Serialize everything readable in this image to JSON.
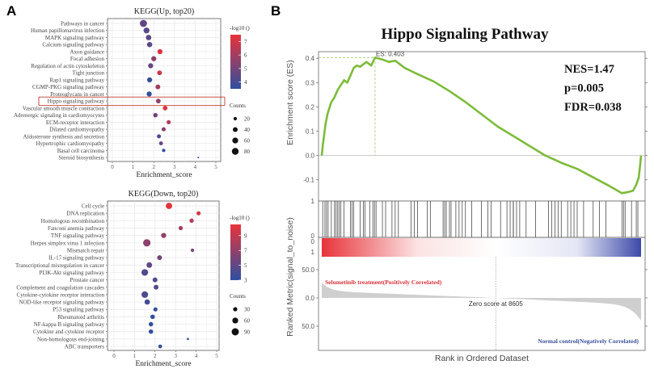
{
  "panel_labels": {
    "a": "A",
    "b": "B"
  },
  "chart_data": [
    {
      "type": "scatter",
      "id": "kegg_up",
      "title": "KEGG(Up, top20)",
      "xlabel": "Enrichment_score",
      "xlim": [
        0,
        5
      ],
      "xticks": [
        "0",
        "1",
        "2",
        "3",
        "4",
        "5"
      ],
      "color_legend": {
        "title": "-log10 ()",
        "range": [
          3.5,
          7.5
        ],
        "ticks": [
          "7",
          "6",
          "5",
          "4"
        ],
        "tick_values": [
          7,
          6,
          5,
          4
        ]
      },
      "size_legend": {
        "title": "Counts",
        "labels": [
          "20",
          "40",
          "60",
          "80"
        ],
        "values": [
          20,
          40,
          60,
          80
        ]
      },
      "highlight": "Hippo signaling pathway",
      "categories": [
        "Pathways in cancer",
        "Human papillomavirus infection",
        "MAPK signaling pathway",
        "Calcium signaling pathway",
        "Axon guidance",
        "Focal adhesion",
        "Regulation of actin cytoskeleton",
        "Tight junction",
        "Rap1 signaling pathway",
        "CGMP-PKG signaling pathway",
        "Proteoglycans in cancer",
        "Hippo signaling pathway",
        "Vascular smooth muscle contraction",
        "Adrenergic signaling in cardiomyocytes",
        "ECM-receptor interaction",
        "Dilated cardiomyopathy",
        "Aldosterone synthesis and secretion",
        "Hypertrophic cardiomyopathy",
        "Basal cell carcinoma",
        "Steroid biosynthesis"
      ],
      "enrichment_score": [
        1.5,
        1.65,
        1.75,
        1.8,
        2.3,
        2.0,
        1.85,
        2.28,
        1.8,
        2.2,
        1.78,
        2.22,
        2.55,
        2.08,
        2.72,
        2.48,
        2.25,
        2.35,
        2.48,
        4.15
      ],
      "neg_log10_p": [
        4.6,
        4.4,
        4.5,
        4.5,
        7.2,
        5.6,
        4.7,
        6.8,
        3.8,
        6.0,
        3.6,
        5.6,
        7.3,
        5.0,
        6.3,
        5.4,
        4.2,
        4.6,
        3.5,
        3.9
      ],
      "counts": [
        88,
        60,
        52,
        48,
        45,
        45,
        45,
        40,
        45,
        40,
        45,
        38,
        38,
        35,
        30,
        30,
        28,
        26,
        20,
        5
      ]
    },
    {
      "type": "scatter",
      "id": "kegg_down",
      "title": "KEGG(Down, top20)",
      "xlabel": "Enrichment_score",
      "xlim": [
        0,
        5
      ],
      "xticks": [
        "0",
        "1",
        "2",
        "3",
        "4",
        "5"
      ],
      "color_legend": {
        "title": "-log10 ()",
        "range": [
          3,
          10.5
        ],
        "ticks": [
          "9",
          "7",
          "5",
          "3"
        ],
        "tick_values": [
          9,
          7,
          5,
          3
        ]
      },
      "size_legend": {
        "title": "Counts",
        "labels": [
          "30",
          "60",
          "90"
        ],
        "values": [
          30,
          60,
          90
        ]
      },
      "categories": [
        "Cell cycle",
        "DNA replication",
        "Homologous recombination",
        "Fanconi anemia pathway",
        "TNF signaling pathway",
        "Herpes simplex virus 1 infection",
        "Mismatch repair",
        "IL-17 signaling pathway",
        "Transcriptional misregulation in cancer",
        "PI3K-Akt signaling pathway",
        "Prostate cancer",
        "Complement and coagulation cascades",
        "Cytokine-cytokine receptor interaction",
        "NOD-like receptor signaling pathway",
        "P53 signaling pathway",
        "Rheumatoid arthritis",
        "NF-kappa B signaling pathway",
        "Cytokine and cytokine receptor",
        "Non-homologous end-joining",
        "ABC transporters"
      ],
      "enrichment_score": [
        2.68,
        4.12,
        3.78,
        3.25,
        2.42,
        1.6,
        3.82,
        2.22,
        1.72,
        1.5,
        2.0,
        2.05,
        1.5,
        1.62,
        2.02,
        1.88,
        1.8,
        1.8,
        3.6,
        2.25
      ],
      "neg_log10_p": [
        10.2,
        9.5,
        8.6,
        8.0,
        7.0,
        6.8,
        6.0,
        6.0,
        5.0,
        4.4,
        4.4,
        4.5,
        4.2,
        4.0,
        3.5,
        3.3,
        3.3,
        3.3,
        3.2,
        3.4
      ],
      "counts": [
        70,
        30,
        32,
        32,
        45,
        95,
        20,
        40,
        55,
        75,
        40,
        40,
        75,
        50,
        30,
        35,
        35,
        35,
        8,
        25
      ]
    },
    {
      "type": "line",
      "id": "gsea",
      "title": "Hippo Signaling Pathway",
      "ylabel": "Enrichment score (ES)",
      "ylim": [
        -0.16,
        0.43
      ],
      "yticks": [
        "0.4",
        "0.3",
        "0.2",
        "0.1",
        "0.0",
        "-0.1"
      ],
      "ytick_values": [
        0.4,
        0.3,
        0.2,
        0.1,
        0.0,
        -0.1
      ],
      "peak_label": "ES: 0.403",
      "peak_es": 0.403,
      "peak_rank_fraction": 0.167,
      "stats": [
        "NES=1.47",
        "p=0.005",
        "FDR=0.038"
      ],
      "es_curve": [
        [
          0,
          0
        ],
        [
          0.004,
          0.05
        ],
        [
          0.008,
          0.09
        ],
        [
          0.012,
          0.13
        ],
        [
          0.018,
          0.17
        ],
        [
          0.025,
          0.2
        ],
        [
          0.03,
          0.22
        ],
        [
          0.04,
          0.24
        ],
        [
          0.05,
          0.27
        ],
        [
          0.06,
          0.29
        ],
        [
          0.07,
          0.31
        ],
        [
          0.08,
          0.3
        ],
        [
          0.09,
          0.33
        ],
        [
          0.1,
          0.36
        ],
        [
          0.11,
          0.37
        ],
        [
          0.12,
          0.365
        ],
        [
          0.14,
          0.385
        ],
        [
          0.155,
          0.37
        ],
        [
          0.167,
          0.403
        ],
        [
          0.19,
          0.395
        ],
        [
          0.21,
          0.385
        ],
        [
          0.23,
          0.39
        ],
        [
          0.26,
          0.36
        ],
        [
          0.3,
          0.335
        ],
        [
          0.35,
          0.305
        ],
        [
          0.4,
          0.265
        ],
        [
          0.45,
          0.22
        ],
        [
          0.5,
          0.17
        ],
        [
          0.55,
          0.12
        ],
        [
          0.6,
          0.08
        ],
        [
          0.65,
          0.04
        ],
        [
          0.7,
          0.0
        ],
        [
          0.75,
          -0.03
        ],
        [
          0.8,
          -0.055
        ],
        [
          0.85,
          -0.09
        ],
        [
          0.9,
          -0.125
        ],
        [
          0.94,
          -0.155
        ],
        [
          0.96,
          -0.15
        ],
        [
          0.975,
          -0.145
        ],
        [
          0.985,
          -0.12
        ],
        [
          0.993,
          -0.09
        ],
        [
          0.997,
          -0.04
        ],
        [
          1.0,
          0.0
        ]
      ],
      "hits": [
        0.003,
        0.01,
        0.015,
        0.02,
        0.03,
        0.04,
        0.045,
        0.05,
        0.055,
        0.06,
        0.07,
        0.09,
        0.095,
        0.1,
        0.12,
        0.13,
        0.135,
        0.15,
        0.16,
        0.165,
        0.17,
        0.19,
        0.2,
        0.22,
        0.23,
        0.24,
        0.28,
        0.29,
        0.3,
        0.33,
        0.34,
        0.38,
        0.385,
        0.39,
        0.4,
        0.405,
        0.42,
        0.43,
        0.44,
        0.45,
        0.47,
        0.5,
        0.52,
        0.53,
        0.56,
        0.58,
        0.59,
        0.6,
        0.6,
        0.61,
        0.62,
        0.64,
        0.67,
        0.71,
        0.72,
        0.73,
        0.74,
        0.75,
        0.77,
        0.78,
        0.79,
        0.8,
        0.82,
        0.85,
        0.87,
        0.89,
        0.94,
        0.945,
        0.95,
        0.97,
        0.985,
        0.99
      ],
      "hits_yticks": [
        "1",
        "0"
      ],
      "bar_yticks": [
        "0",
        "1"
      ],
      "metric_ylabel": "Ranked Metric(signal_to_noise)",
      "metric_yticks": [
        "50.0",
        "0.0",
        "50.0"
      ],
      "metric_tick_values": [
        50,
        0,
        -50
      ],
      "metric_ylim": [
        -65,
        70
      ],
      "metric_start": 27,
      "metric_end": -40,
      "zero_rank_fraction": 0.545,
      "zero_label": "Zero score at 8605",
      "pos_label": "Selumetinib treatment(Positively Correlated)",
      "neg_label": "Normal control(Negatively Correlated)",
      "xlabel": "Rank in Ordered Dataset",
      "colors": {
        "curve": "#7dbb3a",
        "pos": "#d9313b",
        "neg": "#3a4f9a",
        "metric": "#cfcfcf"
      }
    }
  ]
}
